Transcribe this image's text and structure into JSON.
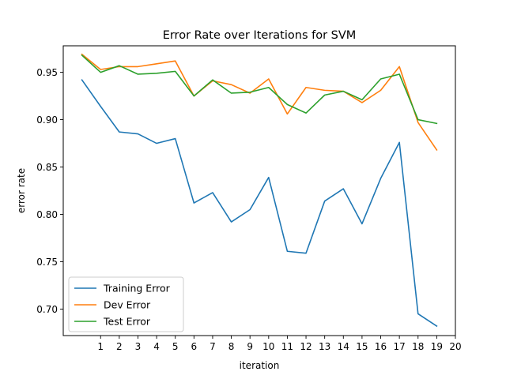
{
  "chart_data": {
    "type": "line",
    "title": "Error Rate over Iterations for SVM",
    "xlabel": "iteration",
    "ylabel": "error rate",
    "xlim": [
      -1.0,
      20.0
    ],
    "ylim": [
      0.672,
      0.978
    ],
    "xticks": [
      1,
      2,
      3,
      4,
      5,
      6,
      7,
      8,
      9,
      10,
      11,
      12,
      13,
      14,
      15,
      16,
      17,
      18,
      19,
      20
    ],
    "xtick_labels": [
      "1",
      "2",
      "3",
      "4",
      "5",
      "6",
      "7",
      "8",
      "9",
      "10",
      "11",
      "12",
      "13",
      "14",
      "15",
      "16",
      "17",
      "18",
      "19",
      "20"
    ],
    "yticks": [
      0.7,
      0.75,
      0.8,
      0.85,
      0.9,
      0.95
    ],
    "ytick_labels": [
      "0.70",
      "0.75",
      "0.80",
      "0.85",
      "0.90",
      "0.95"
    ],
    "grid": false,
    "legend_position": "lower-left",
    "x": [
      0,
      1,
      2,
      3,
      4,
      5,
      6,
      7,
      8,
      9,
      10,
      11,
      12,
      13,
      14,
      15,
      16,
      17,
      18,
      19
    ],
    "series": [
      {
        "name": "Training Error",
        "color": "#1f77b4",
        "values": [
          0.942,
          0.914,
          0.887,
          0.885,
          0.875,
          0.88,
          0.812,
          0.823,
          0.792,
          0.805,
          0.839,
          0.761,
          0.759,
          0.814,
          0.827,
          0.79,
          0.838,
          0.876,
          0.695,
          0.682
        ]
      },
      {
        "name": "Dev Error",
        "color": "#ff7f0e",
        "values": [
          0.969,
          0.953,
          0.956,
          0.956,
          0.959,
          0.962,
          0.925,
          0.941,
          0.937,
          0.928,
          0.943,
          0.906,
          0.934,
          0.931,
          0.93,
          0.918,
          0.931,
          0.956,
          0.897,
          0.868
        ]
      },
      {
        "name": "Test Error",
        "color": "#2ca02c",
        "values": [
          0.968,
          0.95,
          0.957,
          0.948,
          0.949,
          0.951,
          0.925,
          0.942,
          0.928,
          0.929,
          0.934,
          0.916,
          0.907,
          0.926,
          0.93,
          0.921,
          0.943,
          0.948,
          0.9,
          0.896
        ]
      }
    ]
  }
}
